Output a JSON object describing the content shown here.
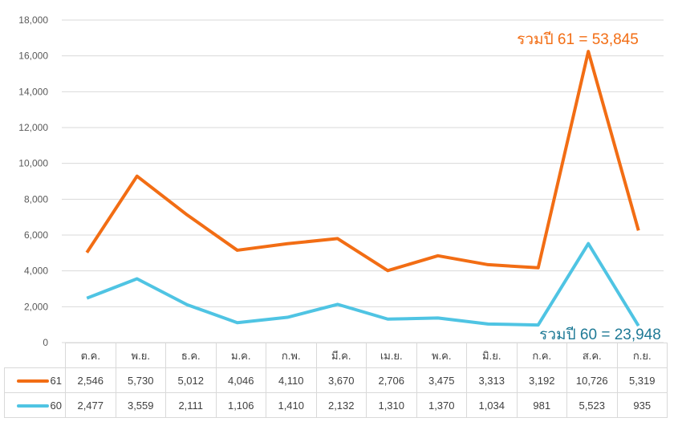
{
  "chart_data": {
    "type": "line",
    "categories": [
      "ต.ค.",
      "พ.ย.",
      "ธ.ค.",
      "ม.ค.",
      "ก.พ.",
      "มี.ค.",
      "เม.ย.",
      "พ.ค.",
      "มิ.ย.",
      "ก.ค.",
      "ส.ค.",
      "ก.ย."
    ],
    "stacked": true,
    "series": [
      {
        "name": "61",
        "color": "#f26d14",
        "values": [
          2546,
          5730,
          5012,
          4046,
          4110,
          3670,
          2706,
          3475,
          3313,
          3192,
          10726,
          5319
        ]
      },
      {
        "name": "60",
        "color": "#4fc4e3",
        "values": [
          2477,
          3559,
          2111,
          1106,
          1410,
          2132,
          1310,
          1370,
          1034,
          981,
          5523,
          935
        ]
      }
    ],
    "ylim": [
      0,
      18000
    ],
    "yticks": [
      "0",
      "2,000",
      "4,000",
      "6,000",
      "8,000",
      "10,000",
      "12,000",
      "14,000",
      "16,000",
      "18,000"
    ],
    "grid": true,
    "data_table": true,
    "annotations": [
      {
        "text": "รวมปี 61 = 53,845",
        "color": "#f26d14"
      },
      {
        "text": "รวมปี 60 = 23,948",
        "color": "#1f7a96"
      }
    ]
  }
}
